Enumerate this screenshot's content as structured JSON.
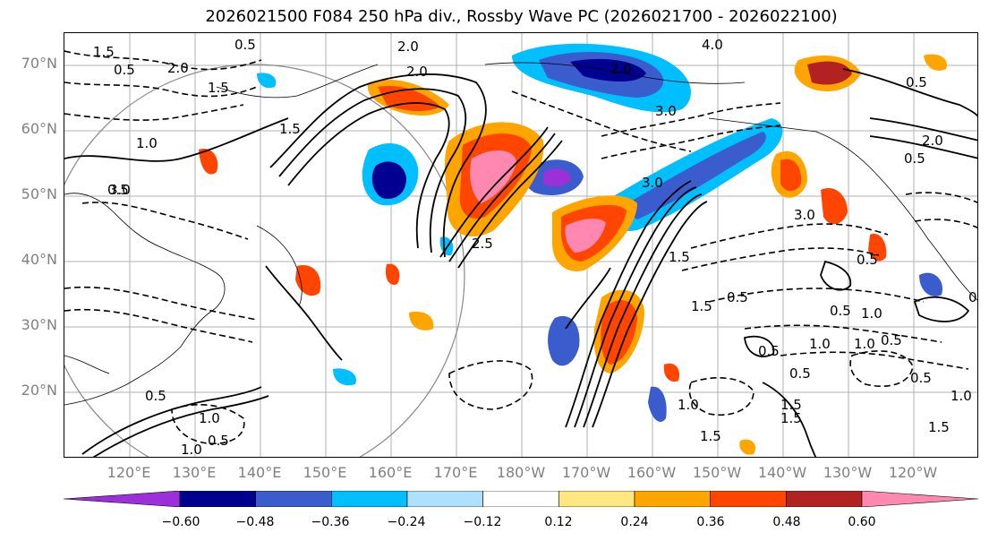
{
  "title": "2026021500 F084 250 hPa div., Rossby Wave PC (2026021700 - 2026022100)",
  "lat_labels": [
    "70°N",
    "60°N",
    "50°N",
    "40°N",
    "30°N",
    "20°N"
  ],
  "lon_labels": [
    "120°E",
    "130°E",
    "140°E",
    "150°E",
    "160°E",
    "170°E",
    "180°W",
    "170°W",
    "160°W",
    "150°W",
    "140°W",
    "130°W",
    "120°W"
  ],
  "colorbar": {
    "ticks": [
      "−0.60",
      "−0.48",
      "−0.36",
      "−0.24",
      "−0.12",
      "0.12",
      "0.24",
      "0.36",
      "0.48",
      "0.60"
    ],
    "colors": [
      "#9b30d9",
      "#000090",
      "#3a5ccc",
      "#00bfff",
      "#aee0ff",
      "#ffffff",
      "#ffe680",
      "#ffa500",
      "#ff4500",
      "#b22222",
      "#ff88b0"
    ]
  },
  "contour_labels": [
    "1.5",
    "0.5",
    "2.0",
    "1.5",
    "0.5",
    "1.0",
    "0.5",
    "2.0",
    "2.0",
    "4.0",
    "3.0",
    "3.0",
    "0.5",
    "1.5",
    "0.5",
    "3.0",
    "2.0",
    "0.5",
    "1.0",
    "0.5",
    "1.0",
    "0.5",
    "3.0",
    "1.5",
    "1.5",
    "0.5",
    "1.0",
    "0.5",
    "1.0",
    "0.5",
    "1.5",
    "0.5",
    "0.5",
    "1.0",
    "1.5",
    "0.5",
    "0.5",
    "2.0",
    "1.5",
    "2.5",
    "1.5",
    "1.0",
    "1.0"
  ]
}
